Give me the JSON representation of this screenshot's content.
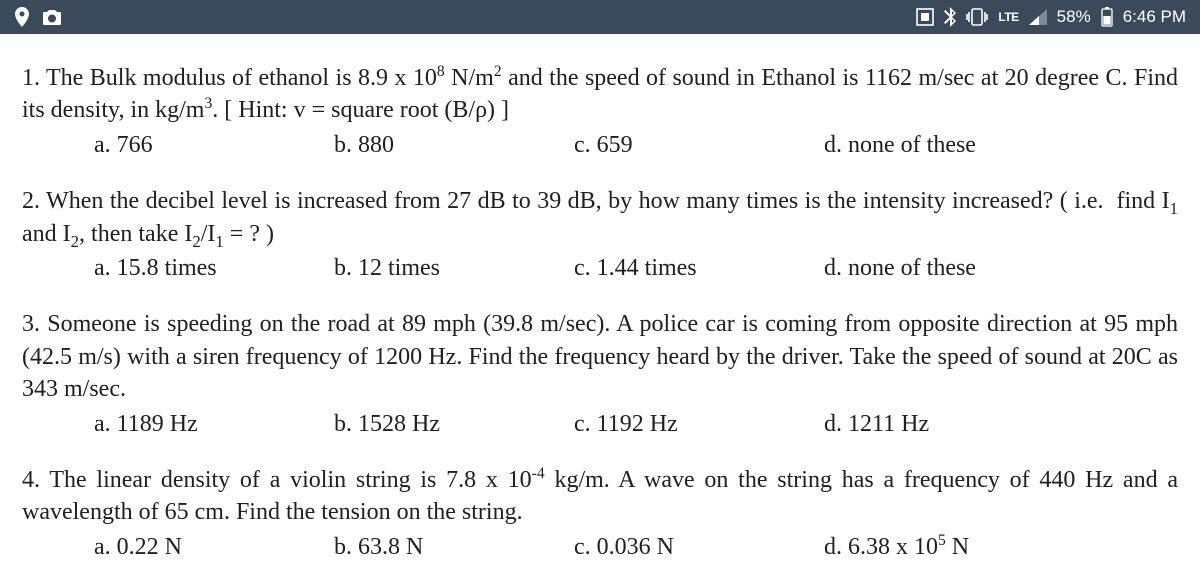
{
  "status_bar": {
    "bg_color": "#3a4a5a",
    "fg_color": "#ffffff",
    "left_icons": [
      "location-icon",
      "camera-icon"
    ],
    "right_icons": [
      "screenshot-icon",
      "bluetooth-icon",
      "vibrate-icon"
    ],
    "lte_label": "LTE",
    "signal_label": "▂▄",
    "battery_pct": "58%",
    "time": "6:46 PM"
  },
  "page": {
    "text_color": "#202020",
    "bg_color": "#ffffff",
    "font_family": "Times New Roman",
    "font_size_pt": 18
  },
  "questions": [
    {
      "num": "1.",
      "text_html": "The Bulk modulus of ethanol is 8.9 x 10<sup>8</sup> N/m<sup>2</sup> and the speed of sound in Ethanol is 1162 m/sec at 20 degree C. Find its density, in kg/m<sup>3</sup>. [ Hint: v = square root (B/ρ) ]",
      "options": {
        "a": "a. 766",
        "b": "b. 880",
        "c": "c. 659",
        "d": "d. none of these"
      }
    },
    {
      "num": "2.",
      "text_html": "When the decibel level is increased from 27 dB to 39 dB, by how many times is the intensity increased? ( i.e.&nbsp;&nbsp;find I<sub>1</sub> and I<sub>2</sub>, then take I<sub>2</sub>/I<sub>1</sub> = ? )",
      "options": {
        "a": "a. 15.8 times",
        "b": "b. 12 times",
        "c": "c. 1.44 times",
        "d": "d. none of these"
      }
    },
    {
      "num": "3.",
      "text_html": "Someone is speeding on the road at 89 mph (39.8 m/sec). A police car is coming from opposite direction at 95 mph (42.5 m/s) with a siren frequency of 1200 Hz. Find the frequency heard by the driver. Take the speed of sound at 20C as 343 m/sec.",
      "options": {
        "a": "a. 1189 Hz",
        "b": "b. 1528 Hz",
        "c": "c. 1192 Hz",
        "d": "d. 1211 Hz"
      }
    },
    {
      "num": "4.",
      "text_html": "The linear density of a violin string is 7.8 x 10<sup>-4</sup> kg/m. A wave on the string has a frequency of 440 Hz and a wavelength of 65 cm. Find the tension on the string.",
      "options": {
        "a": "a. 0.22 N",
        "b": "b. 63.8 N",
        "c": "c. 0.036 N",
        "d": "d. 6.38 x 10<sup>5</sup> N"
      }
    }
  ]
}
